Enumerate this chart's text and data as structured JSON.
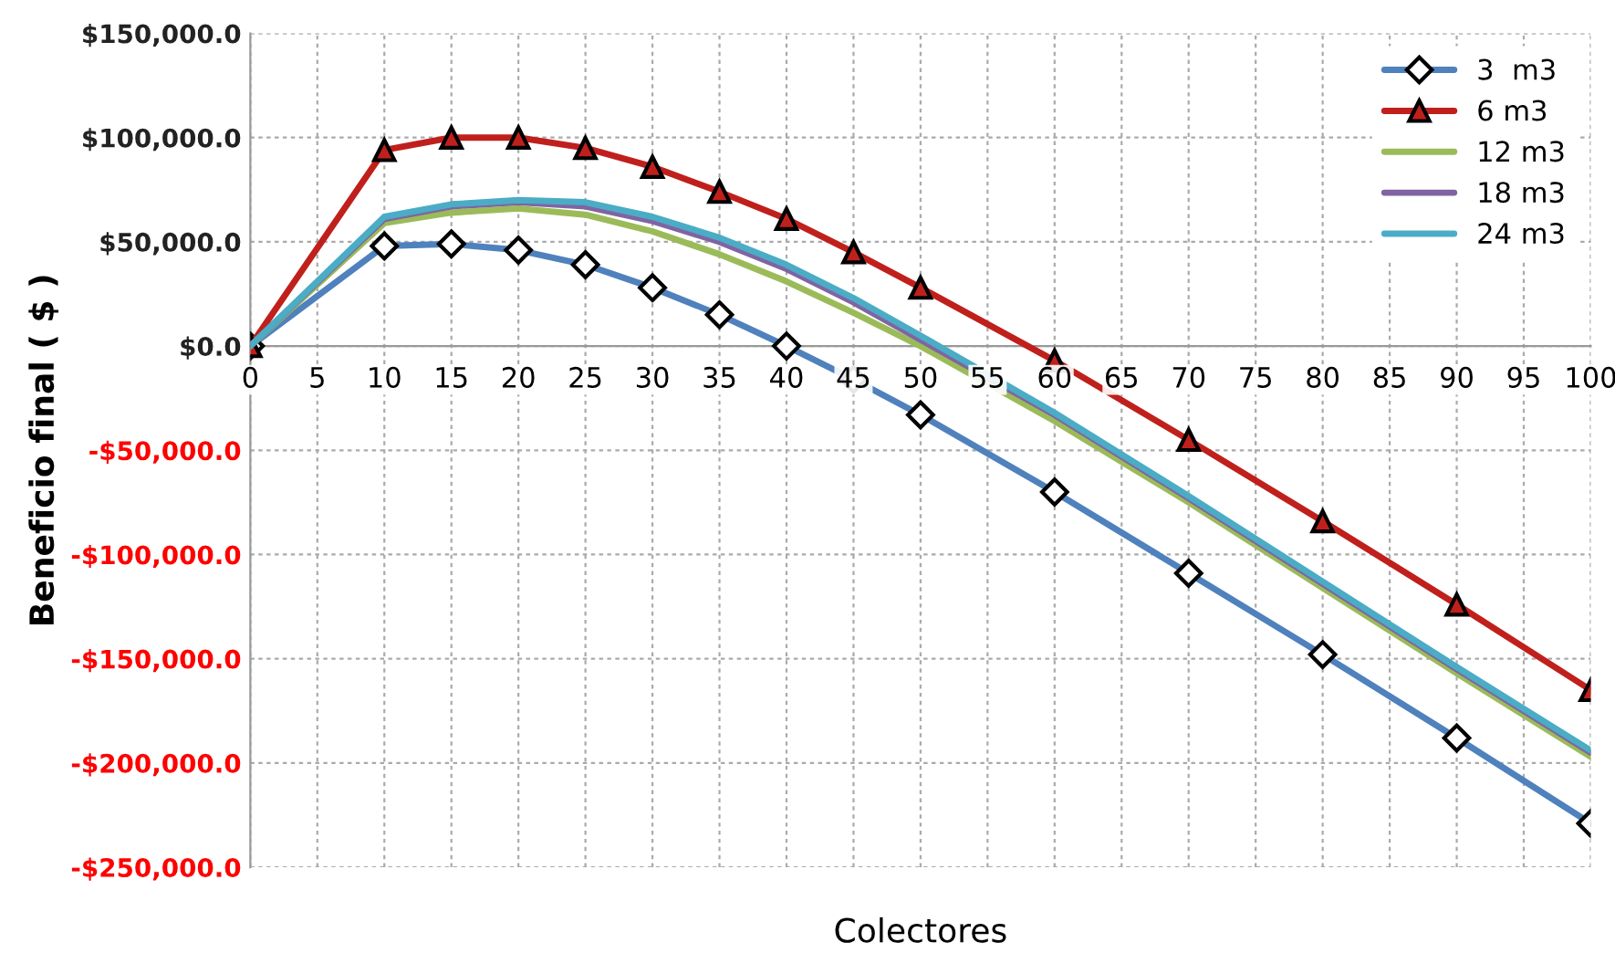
{
  "chart_data": {
    "type": "line",
    "xlabel": "Colectores",
    "ylabel": "Beneficio final ( $ )",
    "x": [
      0,
      10,
      15,
      20,
      25,
      30,
      35,
      40,
      45,
      50,
      60,
      70,
      80,
      90,
      100
    ],
    "series": [
      {
        "name": "3  m3",
        "color": "#4f81bd",
        "marker": "diamond",
        "values": [
          0,
          48000,
          49000,
          46000,
          39000,
          28000,
          15000,
          0,
          -16000,
          -33000,
          -70000,
          -109000,
          -148000,
          -188000,
          -229000
        ]
      },
      {
        "name": "6 m3",
        "color": "#c0201c",
        "marker": "triangle",
        "values": [
          0,
          94000,
          100000,
          100000,
          95000,
          86000,
          74000,
          61000,
          45000,
          28000,
          -7000,
          -45000,
          -84000,
          -124000,
          -165000
        ]
      },
      {
        "name": "12 m3",
        "color": "#9bbb59",
        "marker": "none",
        "values": [
          0,
          59000,
          64000,
          66000,
          63000,
          55000,
          44000,
          31000,
          16000,
          0,
          -36000,
          -75000,
          -116000,
          -157000,
          -197000
        ]
      },
      {
        "name": "18 m3",
        "color": "#8064a2",
        "marker": "none",
        "values": [
          0,
          61000,
          67000,
          69000,
          67000,
          60000,
          50000,
          37000,
          21000,
          3000,
          -33000,
          -73000,
          -114000,
          -155000,
          -195000
        ]
      },
      {
        "name": "24 m3",
        "color": "#4bacc6",
        "marker": "none",
        "values": [
          0,
          62000,
          68000,
          70000,
          69000,
          62000,
          52000,
          39000,
          23000,
          5000,
          -32000,
          -72000,
          -113000,
          -154000,
          -194000
        ]
      }
    ],
    "xlim": [
      0,
      100
    ],
    "xticks": [
      0,
      5,
      10,
      15,
      20,
      25,
      30,
      35,
      40,
      45,
      50,
      55,
      60,
      65,
      70,
      75,
      80,
      85,
      90,
      95,
      100
    ],
    "ylim": [
      -250000,
      150000
    ],
    "yticks": [
      {
        "value": -250000,
        "label": "-$250,000.0"
      },
      {
        "value": -200000,
        "label": "-$200,000.0"
      },
      {
        "value": -150000,
        "label": "-$150,000.0"
      },
      {
        "value": -100000,
        "label": "-$100,000.0"
      },
      {
        "value": -50000,
        "label": "-$50,000.0"
      },
      {
        "value": 0,
        "label": "$0.0"
      },
      {
        "value": 50000,
        "label": "$50,000.0"
      },
      {
        "value": 100000,
        "label": "$100,000.0"
      },
      {
        "value": 150000,
        "label": "$150,000.0"
      }
    ],
    "grid": true,
    "legend": "top right",
    "line_style": "solid"
  }
}
